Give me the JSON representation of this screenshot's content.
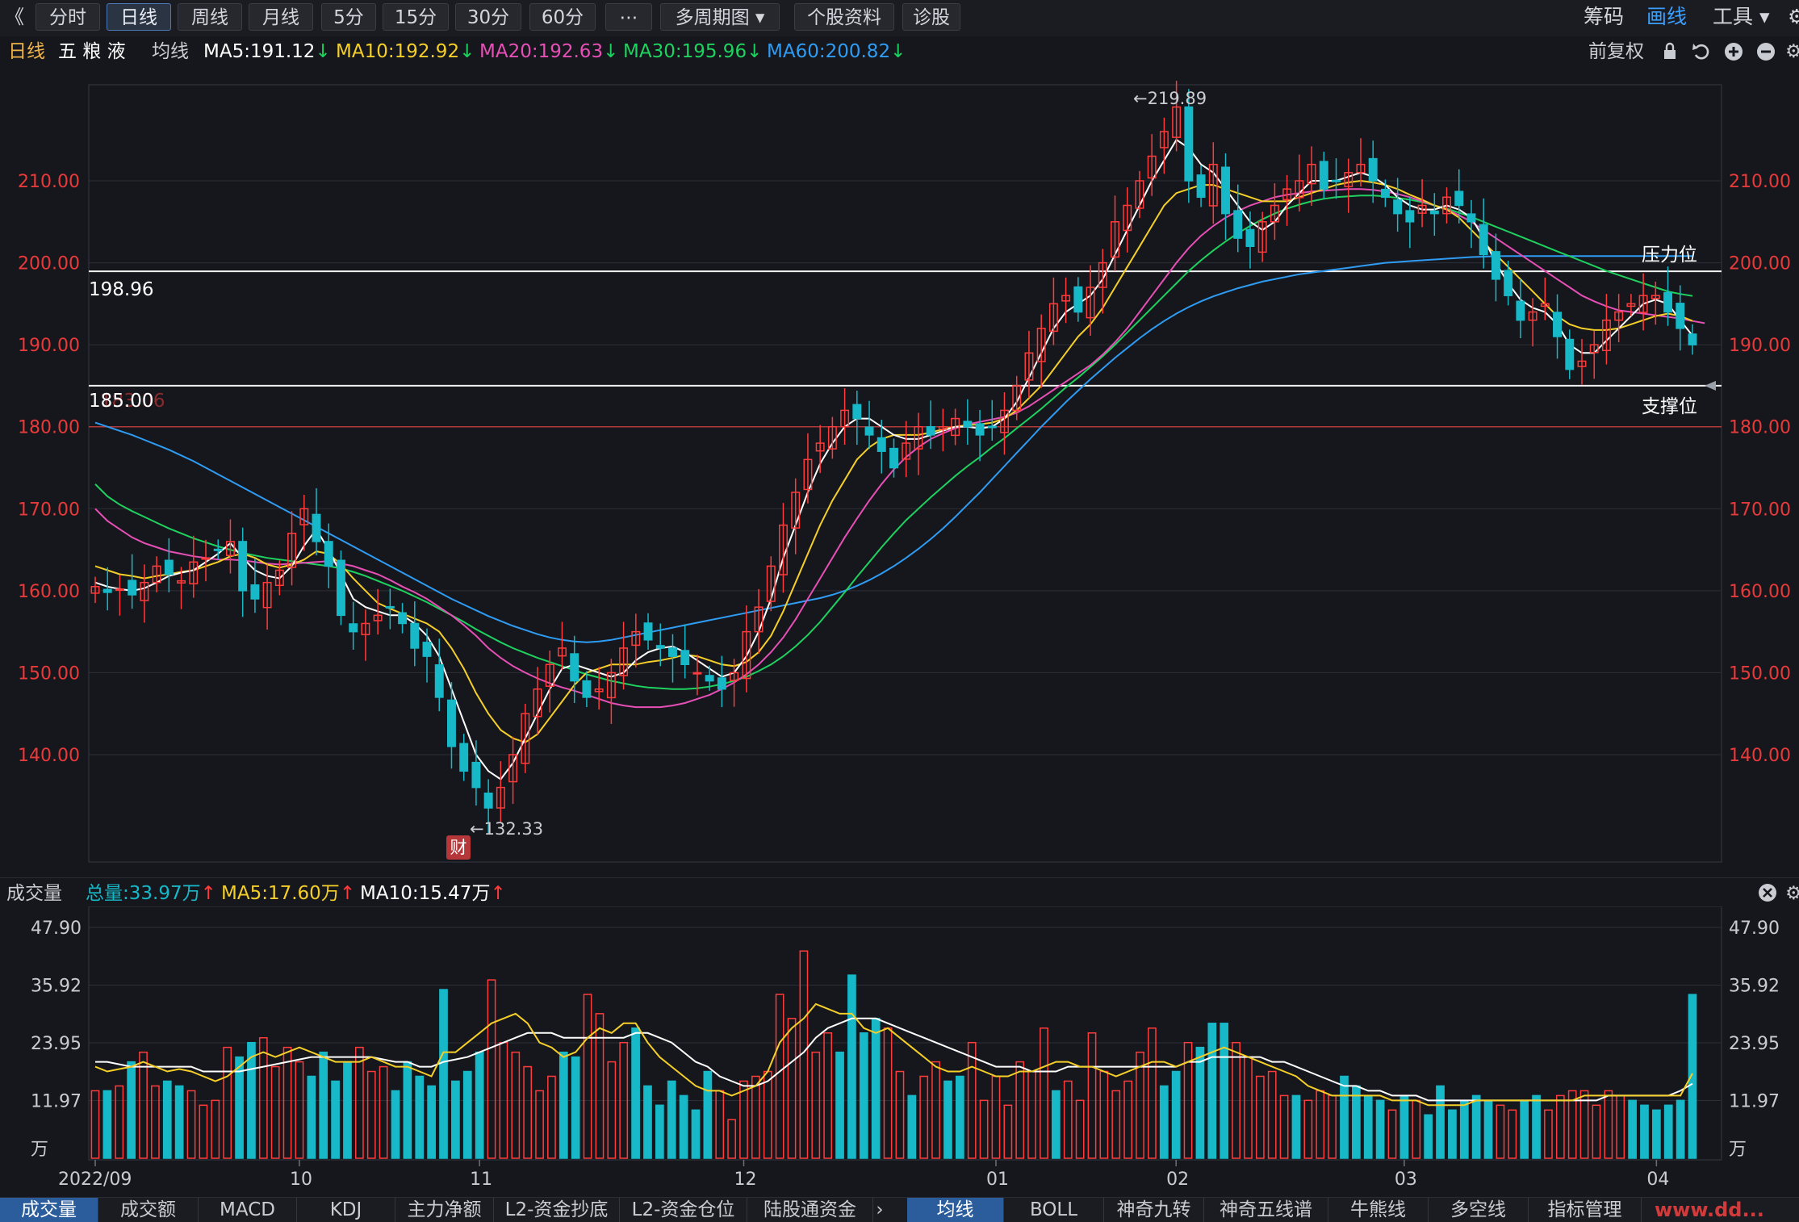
{
  "topbar": {
    "collapse": "《",
    "tabs": [
      "分时",
      "日线",
      "周线",
      "月线",
      "5分",
      "15分",
      "30分",
      "60分",
      "⋯",
      "多周期图 ▾",
      "个股资料",
      "诊股"
    ],
    "active_tab": "日线",
    "right": [
      "筹码",
      "画线",
      "工具 ▾"
    ]
  },
  "infobar": {
    "period": "日线",
    "stock": "五 粮 液",
    "ma_label": "均线",
    "ma5": "MA5:191.12",
    "ma10": "MA10:192.92",
    "ma20": "MA20:192.63",
    "ma30": "MA30:195.96",
    "ma60": "MA60:200.82",
    "adjust": "前复权"
  },
  "colors": {
    "up": "#ff3b3b",
    "down": "#17b8c8",
    "ma5": "#ffffff",
    "ma10": "#f5cf29",
    "ma20": "#e64fb5",
    "ma30": "#1fd25f",
    "ma60": "#2f9cf4",
    "pos": "#e83a3a",
    "vol_label": "#17b8c8"
  },
  "annotations": {
    "high": "←219.89",
    "low": "←132.33",
    "resistance_label": "压力位",
    "resistance_value": "198.96",
    "support_label": "支撑位",
    "support_value": "185.00",
    "support_hidden": "183.06",
    "badge": "财"
  },
  "volbar": {
    "label": "成交量",
    "total": "总量:33.97万",
    "ma5": "MA5:17.60万",
    "ma10": "MA10:15.47万"
  },
  "bottombar": {
    "tabs_left": [
      "成交量",
      "成交额",
      "MACD",
      "KDJ",
      "主力净额",
      "L2-资金抄底",
      "L2-资金仓位",
      "陆股通资金"
    ],
    "tabs_right": [
      "均线",
      "BOLL",
      "神奇九转",
      "神奇五线谱",
      "牛熊线",
      "多空线",
      "指标管理"
    ],
    "watermark": "www.dd..."
  },
  "chart_data": [
    {
      "type": "candlestick",
      "title": "五粮液 日线",
      "y_ticks": [
        "210.00",
        "200.00",
        "190.00",
        "180.00",
        "170.00",
        "160.00",
        "150.00",
        "140.00"
      ],
      "ylim": [
        128,
        224
      ],
      "x_ticks": [
        "2022/09",
        "10",
        "11",
        "12",
        "01",
        "02",
        "03",
        "04"
      ],
      "x_tick_index": [
        0,
        17,
        32,
        54,
        75,
        90,
        109,
        130
      ],
      "high": 219.89,
      "low": 132.33,
      "reference_lines": [
        198.96,
        185.0,
        180.0
      ],
      "closes": [
        160.5,
        159.8,
        160.2,
        159.5,
        161,
        163,
        162,
        161.2,
        163.5,
        164,
        165,
        166,
        160,
        159,
        161,
        162.5,
        167,
        170,
        166,
        163,
        157,
        155,
        156,
        157,
        158,
        156,
        153,
        152,
        147,
        141,
        138,
        136,
        133.5,
        136,
        140,
        145,
        148,
        151,
        153,
        149,
        147,
        148,
        150,
        153,
        155,
        154,
        153,
        152,
        151,
        150,
        149,
        148,
        150,
        155,
        158,
        163,
        168,
        172,
        176,
        178,
        180,
        182,
        181,
        179,
        177,
        175,
        178,
        180,
        179,
        180,
        181,
        180,
        179,
        180,
        182,
        185,
        189,
        192,
        195,
        196,
        194,
        197,
        200,
        205,
        207,
        210,
        213,
        216,
        219,
        210,
        208,
        212,
        206,
        203,
        202,
        205,
        207,
        209,
        210,
        212,
        209,
        210,
        211,
        212,
        210,
        208,
        206,
        205,
        207,
        206,
        208,
        207,
        205,
        201,
        198,
        196,
        193,
        194,
        195,
        191,
        187,
        188,
        190,
        193,
        194,
        195,
        196,
        196,
        194,
        192,
        190
      ],
      "ma5": [
        161,
        160.5,
        160.2,
        160,
        160.3,
        161,
        161.8,
        162.2,
        162.5,
        163.5,
        164.5,
        165.8,
        164,
        162.5,
        161.8,
        161.5,
        163,
        165.5,
        167.5,
        165,
        162,
        159,
        158,
        157.5,
        157,
        157,
        156,
        154.5,
        152,
        148,
        144,
        140,
        138,
        137,
        139,
        142,
        145,
        148,
        150.5,
        151,
        150.5,
        150,
        149.5,
        150,
        151.5,
        152.5,
        153,
        153.2,
        152.5,
        151.5,
        150.5,
        149.5,
        150,
        152,
        155,
        159,
        164,
        168,
        172,
        175.5,
        178,
        180,
        181,
        181,
        180,
        179,
        178.5,
        178.5,
        179,
        179.5,
        180,
        180,
        179.8,
        180,
        181,
        183,
        186,
        189,
        192,
        194,
        195,
        196,
        198,
        201,
        204,
        207,
        210,
        212.5,
        215,
        214,
        212,
        211,
        209,
        207,
        205,
        204,
        205,
        207,
        208.5,
        210,
        210,
        210,
        210.5,
        211,
        210.5,
        209.5,
        208,
        207,
        206.5,
        206.5,
        207,
        206.5,
        205.5,
        203,
        200,
        197.5,
        195.5,
        194.5,
        194,
        192.5,
        190,
        189,
        189,
        190.5,
        192,
        193.5,
        195,
        195.5,
        195,
        193,
        191.12
      ],
      "ma10": [
        163,
        162.5,
        162,
        161.8,
        161.5,
        161.8,
        162,
        162.3,
        162.5,
        163,
        163.5,
        164.2,
        164.5,
        164,
        163.2,
        162.8,
        163.2,
        163.8,
        164.8,
        164.5,
        163.2,
        161.5,
        160,
        158.5,
        157.8,
        157.2,
        156.6,
        156,
        155,
        153,
        150.5,
        147.5,
        145,
        143,
        142,
        141.5,
        142.5,
        144.5,
        146.5,
        148.5,
        150,
        150.5,
        151,
        151,
        151,
        151.3,
        151.5,
        151.8,
        152.2,
        152,
        151.5,
        151,
        150.8,
        151.3,
        152.5,
        154.5,
        157.5,
        161,
        164.5,
        168,
        171,
        173.5,
        176,
        177.5,
        178.5,
        179,
        179,
        179,
        179.3,
        179.7,
        180,
        180.2,
        180.3,
        180.5,
        181,
        182,
        183.5,
        185,
        187,
        189,
        191,
        192.5,
        194.5,
        197,
        199.5,
        202,
        204.5,
        207,
        208.5,
        209,
        209.5,
        209.5,
        209,
        208.5,
        208,
        207.5,
        207.5,
        207.5,
        208,
        208.5,
        209,
        209.5,
        209.8,
        210,
        209.8,
        209.5,
        209,
        208.3,
        207.7,
        207,
        206.5,
        205.5,
        204,
        202.5,
        201,
        199.5,
        198,
        196.5,
        195,
        193.5,
        192.5,
        192,
        191.8,
        191.8,
        192,
        192.5,
        193,
        193.5,
        193.8,
        193.5,
        192.92
      ],
      "ma20": [
        170,
        168.5,
        167.5,
        166.5,
        165.8,
        165.3,
        164.8,
        164.5,
        164.2,
        164,
        163.8,
        163.8,
        163.7,
        163.5,
        163.3,
        163.2,
        163.3,
        163.4,
        163.5,
        163.6,
        163.3,
        163,
        162.5,
        162,
        161.3,
        160.5,
        159.8,
        159,
        158,
        157,
        155.8,
        154.5,
        153,
        151.8,
        150.8,
        150,
        149.3,
        148.7,
        148.2,
        147.8,
        147.3,
        146.8,
        146.3,
        146,
        145.8,
        145.8,
        145.8,
        146,
        146.3,
        146.8,
        147.3,
        148,
        148.8,
        149.8,
        151,
        152.5,
        154.3,
        156.5,
        159,
        161.5,
        164,
        166.5,
        168.8,
        171,
        173,
        174.8,
        176.3,
        177.5,
        178.5,
        179.2,
        179.8,
        180.3,
        180.6,
        180.9,
        181.2,
        181.7,
        182.5,
        183.5,
        184.5,
        185.5,
        186.5,
        187.5,
        188.8,
        190.3,
        192,
        194,
        196,
        198,
        200,
        201.8,
        203.3,
        204.5,
        205.5,
        206.3,
        207,
        207.5,
        208,
        208.3,
        208.5,
        208.7,
        208.8,
        208.9,
        209,
        209,
        208.9,
        208.7,
        208.4,
        208,
        207.5,
        207,
        206.5,
        205.8,
        205,
        204,
        203,
        202,
        201,
        200,
        199,
        198,
        197,
        196,
        195.3,
        194.7,
        194.2,
        194,
        193.8,
        193.6,
        193.4,
        193.2,
        192.9,
        192.63
      ],
      "ma30": [
        173,
        171.5,
        170.5,
        169.7,
        169,
        168.3,
        167.6,
        167,
        166.4,
        165.9,
        165.4,
        165,
        164.6,
        164.3,
        164,
        163.8,
        163.6,
        163.4,
        163.2,
        163,
        162.7,
        162.3,
        161.8,
        161.2,
        160.6,
        160,
        159.3,
        158.6,
        157.8,
        157,
        156.2,
        155.3,
        154.5,
        153.7,
        153,
        152.4,
        151.8,
        151.3,
        150.8,
        150.3,
        149.8,
        149.4,
        149,
        148.7,
        148.4,
        148.2,
        148.1,
        148,
        148,
        148.1,
        148.3,
        148.6,
        149,
        149.5,
        150.2,
        151,
        152,
        153.2,
        154.6,
        156.2,
        158,
        159.8,
        161.7,
        163.5,
        165.3,
        167,
        168.6,
        170,
        171.4,
        172.7,
        174,
        175.2,
        176.3,
        177.5,
        178.6,
        179.8,
        181,
        182.2,
        183.5,
        184.8,
        186,
        187.3,
        188.6,
        190,
        191.5,
        193,
        194.5,
        196,
        197.5,
        199,
        200.3,
        201.5,
        202.6,
        203.6,
        204.5,
        205.3,
        206,
        206.6,
        207.1,
        207.5,
        207.8,
        208,
        208.1,
        208.2,
        208.2,
        208.1,
        207.9,
        207.7,
        207.4,
        207,
        206.6,
        206.1,
        205.6,
        205,
        204.4,
        203.8,
        203.2,
        202.6,
        202,
        201.4,
        200.8,
        200.2,
        199.6,
        199,
        198.5,
        198,
        197.5,
        197,
        196.5,
        196.2,
        195.96
      ],
      "ma60": [
        180.5,
        180,
        179.5,
        179,
        178.4,
        177.8,
        177.2,
        176.5,
        175.8,
        175,
        174.2,
        173.4,
        172.6,
        171.8,
        171,
        170.2,
        169.4,
        168.6,
        167.8,
        167,
        166.2,
        165.4,
        164.6,
        163.8,
        163,
        162.2,
        161.4,
        160.6,
        159.8,
        159,
        158.3,
        157.6,
        156.9,
        156.3,
        155.7,
        155.2,
        154.7,
        154.3,
        154,
        153.8,
        153.7,
        153.8,
        154,
        154.3,
        154.6,
        154.9,
        155.2,
        155.5,
        155.8,
        156.1,
        156.4,
        156.7,
        157,
        157.3,
        157.6,
        157.9,
        158.2,
        158.5,
        158.8,
        159.1,
        159.5,
        160,
        160.6,
        161.3,
        162.1,
        163,
        164,
        165.1,
        166.3,
        167.6,
        169,
        170.5,
        172,
        173.6,
        175.2,
        176.8,
        178.4,
        180,
        181.5,
        183,
        184.4,
        185.8,
        187.1,
        188.4,
        189.6,
        190.8,
        191.9,
        192.9,
        193.8,
        194.6,
        195.3,
        195.9,
        196.4,
        196.9,
        197.3,
        197.7,
        198,
        198.3,
        198.6,
        198.8,
        199,
        199.2,
        199.4,
        199.6,
        199.8,
        200,
        200.1,
        200.2,
        200.3,
        200.4,
        200.5,
        200.6,
        200.7,
        200.75,
        200.8,
        200.82,
        200.82,
        200.82,
        200.82,
        200.82,
        200.82,
        200.82,
        200.82,
        200.82,
        200.82,
        200.82,
        200.82,
        200.82,
        200.82,
        200.82,
        200.82
      ]
    },
    {
      "type": "bar",
      "title": "成交量",
      "unit": "万",
      "y_ticks": [
        "47.90",
        "35.92",
        "23.95",
        "11.97",
        "万"
      ],
      "ylim": [
        0,
        47.9
      ],
      "values": [
        14,
        14,
        15,
        20,
        22,
        15,
        16,
        15,
        14,
        11,
        12,
        23,
        21,
        24,
        25,
        19,
        23,
        20,
        17,
        22,
        16,
        20,
        23,
        18,
        19,
        14,
        20,
        17,
        15,
        35,
        16,
        18,
        22,
        37,
        24,
        22,
        19,
        14,
        17,
        22,
        21,
        34,
        30,
        20,
        24,
        27,
        15,
        11,
        16,
        13,
        10,
        18,
        14,
        8,
        16,
        17,
        18,
        34,
        29,
        43,
        22,
        26,
        22,
        38,
        26,
        29,
        27,
        18,
        13,
        17,
        20,
        16,
        17,
        24,
        12,
        17,
        11,
        20,
        18,
        27,
        14,
        16,
        12,
        26,
        18,
        14,
        16,
        22,
        27,
        15,
        18,
        24,
        23,
        28,
        28,
        24,
        21,
        17,
        18,
        13,
        13,
        12,
        14,
        13,
        17,
        15,
        13,
        12,
        10,
        13,
        12,
        9,
        15,
        10,
        12,
        13,
        12,
        11,
        10,
        12,
        13,
        10,
        13,
        14,
        14,
        11,
        14,
        13,
        12,
        11,
        10,
        11,
        12,
        33.97
      ],
      "ma5": [
        19,
        18,
        18.5,
        19,
        20,
        19,
        18,
        18.5,
        18,
        17,
        16,
        17,
        19,
        21,
        22,
        21,
        22,
        23,
        22,
        21,
        20,
        20,
        20,
        21,
        20,
        19,
        19,
        18,
        17,
        22,
        22,
        24,
        26,
        28,
        29,
        30,
        28,
        24,
        23,
        21,
        22,
        25,
        27,
        26,
        28,
        28,
        24,
        21,
        19,
        17,
        15,
        14,
        14,
        13,
        14,
        15,
        18,
        24,
        27,
        29,
        32,
        31,
        30,
        30,
        27,
        26,
        27,
        25,
        23,
        21,
        19,
        18,
        18,
        19,
        18,
        17,
        17,
        18,
        18,
        19,
        20,
        20,
        19,
        19,
        18,
        17,
        18,
        19,
        20,
        20,
        19,
        20,
        21,
        22,
        23,
        22,
        21,
        20,
        19,
        18,
        17,
        15,
        14,
        13,
        13,
        13,
        13,
        13,
        12,
        12,
        12,
        11,
        11,
        11,
        11,
        12,
        12,
        12,
        12,
        12,
        12,
        12,
        12,
        12,
        13,
        13,
        13,
        13,
        13,
        13,
        13,
        13,
        13,
        17.6
      ],
      "ma10": [
        20,
        20,
        19.5,
        19,
        19,
        19,
        19,
        19,
        19,
        18,
        18,
        18,
        18,
        18.5,
        19,
        19.5,
        20,
        20.5,
        21,
        21,
        21,
        21,
        21,
        21,
        20.5,
        20,
        20,
        19,
        19,
        20,
        20.5,
        21,
        22,
        23,
        24,
        25,
        26,
        26,
        26,
        25,
        25,
        25,
        25,
        25,
        25,
        26,
        26,
        25,
        24,
        22,
        20,
        19,
        17,
        16,
        15,
        15,
        16,
        18,
        20,
        22,
        25,
        27,
        28,
        29,
        29,
        29,
        28,
        27,
        26,
        25,
        24,
        23,
        22,
        21,
        20,
        19,
        19,
        19,
        18,
        18,
        18,
        19,
        19,
        19,
        19,
        19,
        19,
        19,
        19,
        19,
        19,
        20,
        20,
        21,
        21,
        21,
        21,
        21,
        20,
        20,
        19,
        18,
        17,
        16,
        15,
        15,
        14,
        14,
        13,
        13,
        13,
        12,
        12,
        12,
        12,
        12,
        12,
        12,
        12,
        12,
        12,
        12,
        12,
        12,
        12,
        12,
        13,
        13,
        13,
        13,
        13,
        13,
        14,
        15.47
      ]
    }
  ]
}
